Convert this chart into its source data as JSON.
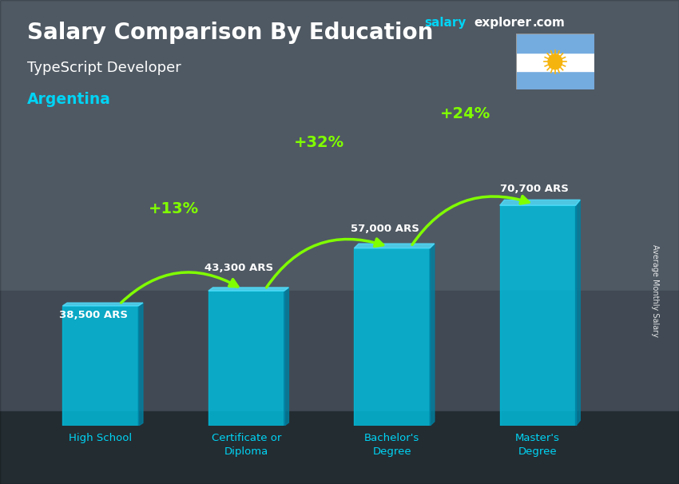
{
  "title_main": "Salary Comparison By Education",
  "title_sub": "TypeScript Developer",
  "title_country": "Argentina",
  "categories": [
    "High School",
    "Certificate or\nDiploma",
    "Bachelor's\nDegree",
    "Master's\nDegree"
  ],
  "values": [
    38500,
    43300,
    57000,
    70700
  ],
  "value_labels": [
    "38,500 ARS",
    "43,300 ARS",
    "57,000 ARS",
    "70,700 ARS"
  ],
  "pct_labels": [
    "+13%",
    "+32%",
    "+24%"
  ],
  "bar_color": "#00bfdf",
  "bar_color_right": "#007fa0",
  "bar_color_top": "#50e0ff",
  "bg_color": "#7a8a9a",
  "text_color_white": "#ffffff",
  "text_color_cyan": "#00d4f5",
  "text_color_green": "#80ff00",
  "ylabel": "Average Monthly Salary",
  "ylim": [
    0,
    90000
  ],
  "bar_alpha": 0.82,
  "flag_colors": [
    "#74acdf",
    "#ffffff",
    "#74acdf"
  ],
  "flag_sun_color": "#F6B40E",
  "brand_salary_color": "#00bfdf",
  "brand_explorer_color": "#ffffff",
  "brand_com_color": "#ffffff"
}
